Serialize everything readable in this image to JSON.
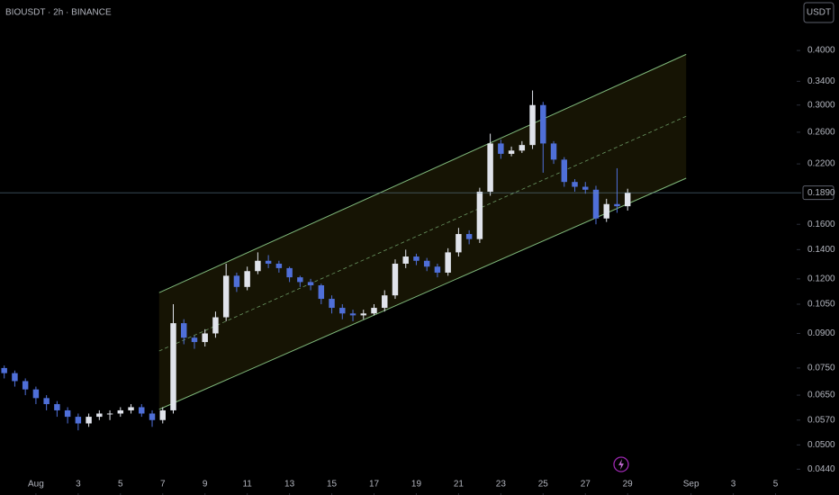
{
  "chart_data": {
    "type": "candlestick",
    "title": "BIOUSDT · 2h · BINANCE",
    "currency_button": "USDT",
    "log_scale": true,
    "grid": false,
    "up_color": "#e0e3eb",
    "down_color": "#4f6fd8",
    "x": [
      -1.5,
      -1,
      -0.5,
      0,
      0.5,
      1,
      1.5,
      2,
      2.5,
      3,
      3.5,
      4,
      4.5,
      5,
      5.5,
      6,
      6.5,
      7,
      7.5,
      8,
      8.5,
      9,
      9.5,
      10,
      10.5,
      11,
      11.5,
      12,
      12.5,
      13,
      13.5,
      14,
      14.5,
      15,
      15.5,
      16,
      16.5,
      17,
      17.5,
      18,
      18.5,
      19,
      19.5,
      20,
      20.5,
      21,
      21.5,
      22,
      22.5,
      23,
      23.5,
      24,
      24.5,
      25,
      25.5,
      26,
      26.5,
      27,
      27.5,
      28
    ],
    "open": [
      0.075,
      0.073,
      0.07,
      0.067,
      0.064,
      0.062,
      0.06,
      0.058,
      0.056,
      0.058,
      0.059,
      0.059,
      0.06,
      0.061,
      0.059,
      0.057,
      0.06,
      0.095,
      0.088,
      0.086,
      0.09,
      0.098,
      0.122,
      0.115,
      0.125,
      0.132,
      0.13,
      0.127,
      0.121,
      0.118,
      0.116,
      0.108,
      0.103,
      0.1,
      0.099,
      0.1,
      0.103,
      0.11,
      0.13,
      0.135,
      0.132,
      0.128,
      0.124,
      0.138,
      0.152,
      0.148,
      0.19,
      0.245,
      0.232,
      0.236,
      0.243,
      0.3,
      0.245,
      0.225,
      0.2,
      0.195,
      0.192,
      0.165,
      0.178,
      0.176
    ],
    "high": [
      0.076,
      0.074,
      0.071,
      0.068,
      0.065,
      0.063,
      0.061,
      0.059,
      0.059,
      0.06,
      0.06,
      0.061,
      0.062,
      0.062,
      0.06,
      0.061,
      0.105,
      0.097,
      0.089,
      0.092,
      0.101,
      0.13,
      0.124,
      0.128,
      0.138,
      0.136,
      0.132,
      0.128,
      0.122,
      0.12,
      0.117,
      0.11,
      0.105,
      0.102,
      0.102,
      0.105,
      0.113,
      0.133,
      0.14,
      0.137,
      0.134,
      0.13,
      0.141,
      0.157,
      0.155,
      0.194,
      0.258,
      0.25,
      0.241,
      0.248,
      0.324,
      0.305,
      0.248,
      0.228,
      0.203,
      0.2,
      0.196,
      0.183,
      0.215,
      0.193
    ],
    "low": [
      0.071,
      0.068,
      0.065,
      0.062,
      0.06,
      0.058,
      0.056,
      0.054,
      0.055,
      0.057,
      0.057,
      0.058,
      0.059,
      0.058,
      0.055,
      0.056,
      0.059,
      0.085,
      0.083,
      0.084,
      0.088,
      0.096,
      0.112,
      0.113,
      0.123,
      0.127,
      0.124,
      0.118,
      0.115,
      0.113,
      0.105,
      0.1,
      0.097,
      0.096,
      0.097,
      0.099,
      0.101,
      0.108,
      0.127,
      0.129,
      0.125,
      0.121,
      0.122,
      0.135,
      0.144,
      0.145,
      0.186,
      0.226,
      0.229,
      0.233,
      0.238,
      0.21,
      0.22,
      0.195,
      0.19,
      0.188,
      0.16,
      0.162,
      0.17,
      0.172
    ],
    "close": [
      0.073,
      0.07,
      0.067,
      0.064,
      0.062,
      0.06,
      0.058,
      0.056,
      0.058,
      0.059,
      0.059,
      0.06,
      0.061,
      0.059,
      0.057,
      0.06,
      0.095,
      0.088,
      0.086,
      0.09,
      0.098,
      0.122,
      0.115,
      0.125,
      0.132,
      0.13,
      0.127,
      0.121,
      0.118,
      0.116,
      0.108,
      0.103,
      0.1,
      0.099,
      0.1,
      0.103,
      0.11,
      0.13,
      0.135,
      0.132,
      0.128,
      0.124,
      0.138,
      0.152,
      0.148,
      0.19,
      0.245,
      0.232,
      0.236,
      0.243,
      0.3,
      0.245,
      0.225,
      0.2,
      0.195,
      0.192,
      0.165,
      0.178,
      0.176,
      0.189
    ],
    "channel": {
      "x": [
        5.83,
        30.77
      ],
      "lower": [
        0.0603,
        0.204
      ],
      "upper": [
        0.1116,
        0.392
      ],
      "color": "#7fb87a"
    },
    "price_line": 0.189,
    "price_label": "0.1890",
    "xlim": [
      -1.7,
      36
    ],
    "ylim": [
      0.0384,
      0.522
    ],
    "xticks": [
      {
        "value": 0,
        "label": "Aug"
      },
      {
        "value": 2,
        "label": "3"
      },
      {
        "value": 4,
        "label": "5"
      },
      {
        "value": 6,
        "label": "7"
      },
      {
        "value": 8,
        "label": "9"
      },
      {
        "value": 10,
        "label": "11"
      },
      {
        "value": 12,
        "label": "13"
      },
      {
        "value": 14,
        "label": "15"
      },
      {
        "value": 16,
        "label": "17"
      },
      {
        "value": 18,
        "label": "19"
      },
      {
        "value": 20,
        "label": "21"
      },
      {
        "value": 22,
        "label": "23"
      },
      {
        "value": 24,
        "label": "25"
      },
      {
        "value": 26,
        "label": "27"
      },
      {
        "value": 28,
        "label": "29"
      },
      {
        "value": 31,
        "label": "Sep"
      },
      {
        "value": 33,
        "label": "3"
      },
      {
        "value": 35,
        "label": "5"
      }
    ],
    "yticks": [
      {
        "value": 0.4,
        "label": "0.4000"
      },
      {
        "value": 0.34,
        "label": "0.3400"
      },
      {
        "value": 0.3,
        "label": "0.3000"
      },
      {
        "value": 0.26,
        "label": "0.2600"
      },
      {
        "value": 0.22,
        "label": "0.2200"
      },
      {
        "value": 0.16,
        "label": "0.1600"
      },
      {
        "value": 0.14,
        "label": "0.1400"
      },
      {
        "value": 0.12,
        "label": "0.1200"
      },
      {
        "value": 0.105,
        "label": "0.1050"
      },
      {
        "value": 0.09,
        "label": "0.0900"
      },
      {
        "value": 0.075,
        "label": "0.0750"
      },
      {
        "value": 0.065,
        "label": "0.0650"
      },
      {
        "value": 0.057,
        "label": "0.0570"
      },
      {
        "value": 0.05,
        "label": "0.0500"
      },
      {
        "value": 0.044,
        "label": "0.0440"
      }
    ]
  }
}
